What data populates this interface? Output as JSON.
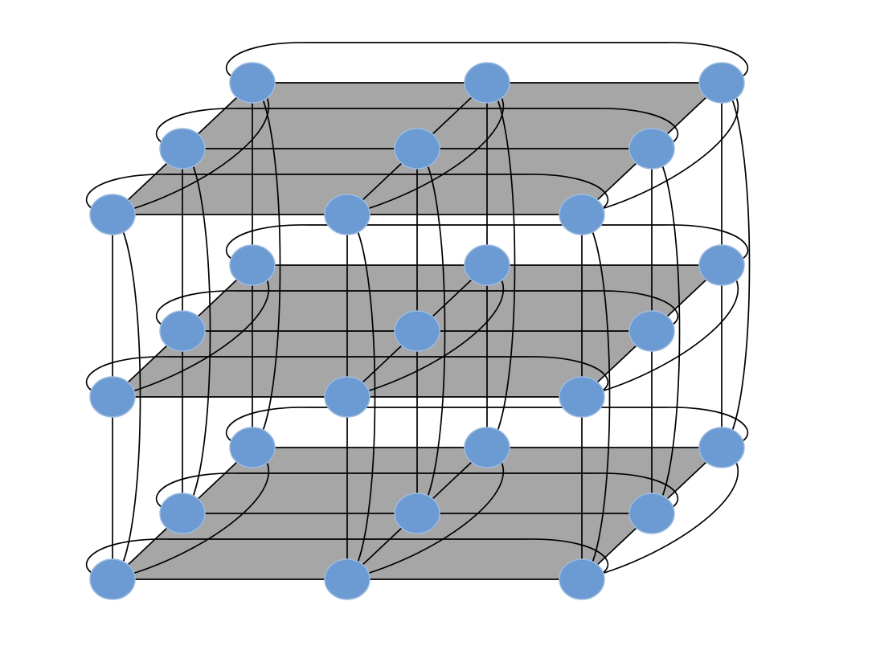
{
  "diagram": {
    "kind": "3D torus interconnect",
    "grid": {
      "layers": 3,
      "rows": 3,
      "columns": 3
    },
    "colors": {
      "background": "#ffffff",
      "plane_fill": "#a6a6a6",
      "node_fill": "#6b9bd2",
      "node_stroke": "#9dbbe0",
      "edge": "#000000"
    }
  }
}
